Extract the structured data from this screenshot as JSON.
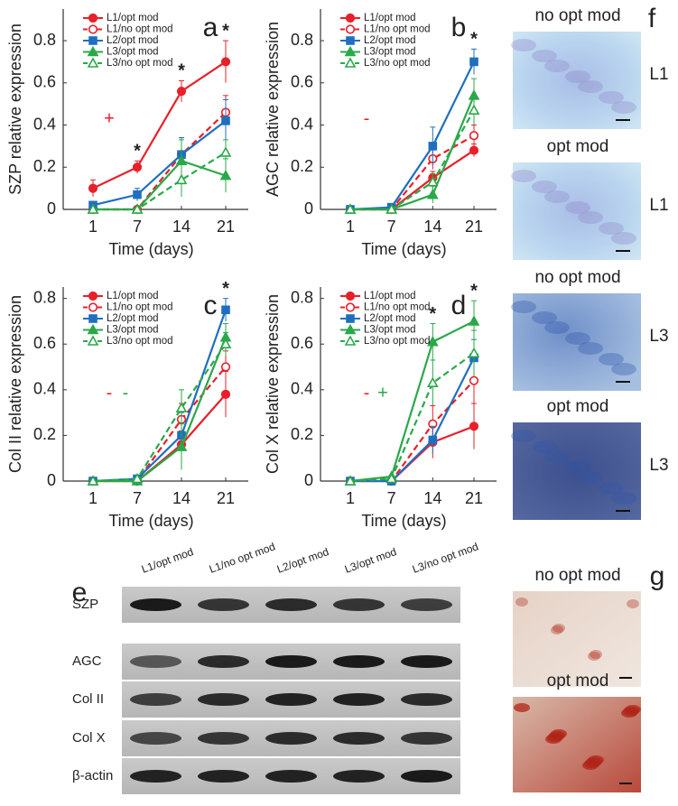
{
  "chart_data": [
    {
      "type": "line",
      "panel": "a",
      "ylabel": "SZP relative expression",
      "xlabel": "Time (days)",
      "categories": [
        "1",
        "7",
        "14",
        "21"
      ],
      "ylim": [
        0,
        0.95
      ],
      "yticks": [
        0,
        0.2,
        0.4,
        0.6,
        0.8
      ],
      "legend": "upper left",
      "series": [
        {
          "name": "L1/opt mod",
          "color": "#e8202a",
          "dash": false,
          "marker": "circle",
          "filled": true,
          "values": [
            0.1,
            0.2,
            0.56,
            0.7
          ],
          "errors": [
            0.04,
            0.03,
            0.05,
            0.1
          ]
        },
        {
          "name": "L1/no opt mod",
          "color": "#e8202a",
          "dash": true,
          "marker": "circle",
          "filled": false,
          "values": [
            0,
            0,
            0.26,
            0.46
          ],
          "errors": [
            0,
            0,
            0.08,
            0.08
          ]
        },
        {
          "name": "L2/opt mod",
          "color": "#1f6fc0",
          "dash": false,
          "marker": "square",
          "filled": true,
          "values": [
            0.02,
            0.07,
            0.26,
            0.42
          ],
          "errors": [
            0.01,
            0.03,
            0.08,
            0.1
          ]
        },
        {
          "name": "L3/opt mod",
          "color": "#2aa84a",
          "dash": false,
          "marker": "triangle",
          "filled": true,
          "values": [
            0,
            0,
            0.23,
            0.16
          ],
          "errors": [
            0,
            0,
            0.1,
            0.08
          ]
        },
        {
          "name": "L3/no opt mod",
          "color": "#2aa84a",
          "dash": true,
          "marker": "triangle",
          "filled": false,
          "values": [
            0,
            0,
            0.14,
            0.27
          ],
          "errors": [
            0,
            0,
            0.08,
            0.06
          ]
        }
      ],
      "annotations": [
        {
          "text": "*",
          "category": "7"
        },
        {
          "text": "*",
          "category": "14"
        },
        {
          "text": "*",
          "category": "21"
        }
      ],
      "signs": [
        {
          "text": "+",
          "color": "#e8202a"
        }
      ]
    },
    {
      "type": "line",
      "panel": "b",
      "ylabel": "AGC relative expression",
      "xlabel": "Time (days)",
      "categories": [
        "1",
        "7",
        "14",
        "21"
      ],
      "ylim": [
        0,
        0.95
      ],
      "yticks": [
        0,
        0.2,
        0.4,
        0.6,
        0.8
      ],
      "legend": "upper left",
      "series": [
        {
          "name": "L1/opt mod",
          "color": "#e8202a",
          "dash": false,
          "marker": "circle",
          "filled": true,
          "values": [
            0,
            0,
            0.15,
            0.28
          ],
          "errors": [
            0,
            0,
            0.03,
            0.03
          ]
        },
        {
          "name": "L1/no opt mod",
          "color": "#e8202a",
          "dash": true,
          "marker": "circle",
          "filled": false,
          "values": [
            0,
            0,
            0.24,
            0.35
          ],
          "errors": [
            0,
            0,
            0.05,
            0.05
          ]
        },
        {
          "name": "L2/opt mod",
          "color": "#1f6fc0",
          "dash": false,
          "marker": "square",
          "filled": true,
          "values": [
            0,
            0.01,
            0.3,
            0.7
          ],
          "errors": [
            0,
            0,
            0.09,
            0.06
          ]
        },
        {
          "name": "L3/opt mod",
          "color": "#2aa84a",
          "dash": false,
          "marker": "triangle",
          "filled": true,
          "values": [
            0,
            0,
            0.07,
            0.54
          ],
          "errors": [
            0,
            0,
            0.04,
            0.08
          ]
        },
        {
          "name": "L3/no opt mod",
          "color": "#2aa84a",
          "dash": true,
          "marker": "triangle",
          "filled": false,
          "values": [
            0,
            0,
            0.13,
            0.47
          ],
          "errors": [
            0,
            0,
            0.04,
            0.07
          ]
        }
      ],
      "annotations": [
        {
          "text": "*",
          "category": "21"
        }
      ],
      "signs": [
        {
          "text": "-",
          "color": "#e8202a"
        }
      ]
    },
    {
      "type": "line",
      "panel": "c",
      "ylabel": "Col II relative expression",
      "xlabel": "Time (days)",
      "categories": [
        "1",
        "7",
        "14",
        "21"
      ],
      "ylim": [
        0,
        0.85
      ],
      "yticks": [
        0,
        0.2,
        0.4,
        0.6,
        0.8
      ],
      "legend": "upper left",
      "series": [
        {
          "name": "L1/opt mod",
          "color": "#e8202a",
          "dash": false,
          "marker": "circle",
          "filled": true,
          "values": [
            0,
            0,
            0.16,
            0.38
          ],
          "errors": [
            0,
            0,
            0.06,
            0.1
          ]
        },
        {
          "name": "L1/no opt mod",
          "color": "#e8202a",
          "dash": true,
          "marker": "circle",
          "filled": false,
          "values": [
            0,
            0,
            0.27,
            0.5
          ],
          "errors": [
            0,
            0,
            0.07,
            0.07
          ]
        },
        {
          "name": "L2/opt mod",
          "color": "#1f6fc0",
          "dash": false,
          "marker": "square",
          "filled": true,
          "values": [
            0,
            0.01,
            0.2,
            0.75
          ],
          "errors": [
            0,
            0,
            0.1,
            0.05
          ]
        },
        {
          "name": "L3/opt mod",
          "color": "#2aa84a",
          "dash": false,
          "marker": "triangle",
          "filled": true,
          "values": [
            0,
            0,
            0.15,
            0.63
          ],
          "errors": [
            0,
            0,
            0.1,
            0.06
          ]
        },
        {
          "name": "L3/no opt mod",
          "color": "#2aa84a",
          "dash": true,
          "marker": "triangle",
          "filled": false,
          "values": [
            0,
            0.01,
            0.32,
            0.6
          ],
          "errors": [
            0,
            0,
            0.08,
            0.05
          ]
        }
      ],
      "annotations": [
        {
          "text": "*",
          "category": "21"
        }
      ],
      "signs": [
        {
          "text": "-",
          "color": "#e8202a"
        },
        {
          "text": "-",
          "color": "#2aa84a"
        }
      ]
    },
    {
      "type": "line",
      "panel": "d",
      "ylabel": "Col X relative expression",
      "xlabel": "Time (days)",
      "categories": [
        "1",
        "7",
        "14",
        "21"
      ],
      "ylim": [
        0,
        0.85
      ],
      "yticks": [
        0,
        0.2,
        0.4,
        0.6,
        0.8
      ],
      "legend": "upper left",
      "series": [
        {
          "name": "L1/opt mod",
          "color": "#e8202a",
          "dash": false,
          "marker": "circle",
          "filled": true,
          "values": [
            0,
            0,
            0.17,
            0.24
          ],
          "errors": [
            0,
            0,
            0.07,
            0.1
          ]
        },
        {
          "name": "L1/no opt mod",
          "color": "#e8202a",
          "dash": true,
          "marker": "circle",
          "filled": false,
          "values": [
            0,
            0,
            0.25,
            0.44
          ],
          "errors": [
            0,
            0,
            0.08,
            0.1
          ]
        },
        {
          "name": "L2/opt mod",
          "color": "#1f6fc0",
          "dash": false,
          "marker": "square",
          "filled": true,
          "values": [
            0,
            0,
            0.18,
            0.54
          ],
          "errors": [
            0,
            0,
            0.06,
            0.08
          ]
        },
        {
          "name": "L3/opt mod",
          "color": "#2aa84a",
          "dash": false,
          "marker": "triangle",
          "filled": true,
          "values": [
            0,
            0.02,
            0.61,
            0.7
          ],
          "errors": [
            0,
            0,
            0.08,
            0.09
          ]
        },
        {
          "name": "L3/no opt mod",
          "color": "#2aa84a",
          "dash": true,
          "marker": "triangle",
          "filled": false,
          "values": [
            0,
            0.01,
            0.43,
            0.56
          ],
          "errors": [
            0,
            0,
            0.1,
            0.1
          ]
        }
      ],
      "annotations": [
        {
          "text": "*",
          "category": "14"
        },
        {
          "text": "*",
          "category": "21"
        }
      ],
      "signs": [
        {
          "text": "-",
          "color": "#e8202a"
        },
        {
          "text": "+",
          "color": "#2aa84a"
        }
      ]
    }
  ],
  "blot": {
    "panel": "e",
    "lanes": [
      "L1/opt mod",
      "L1/no opt mod",
      "L2/opt mod",
      "L3/opt mod",
      "L3/no opt mod"
    ],
    "proteins": [
      "SZP",
      "AGC",
      "Col II",
      "Col X",
      "β-actin"
    ]
  },
  "staining_f": {
    "panel": "f",
    "images": [
      {
        "caption": "no opt mod",
        "label": "L1"
      },
      {
        "caption": "opt mod",
        "label": "L1"
      },
      {
        "caption": "no opt mod",
        "label": "L3"
      },
      {
        "caption": "opt mod",
        "label": "L3"
      }
    ]
  },
  "staining_g": {
    "panel": "g",
    "images": [
      {
        "caption": "no opt mod"
      },
      {
        "caption": "opt mod"
      }
    ]
  }
}
